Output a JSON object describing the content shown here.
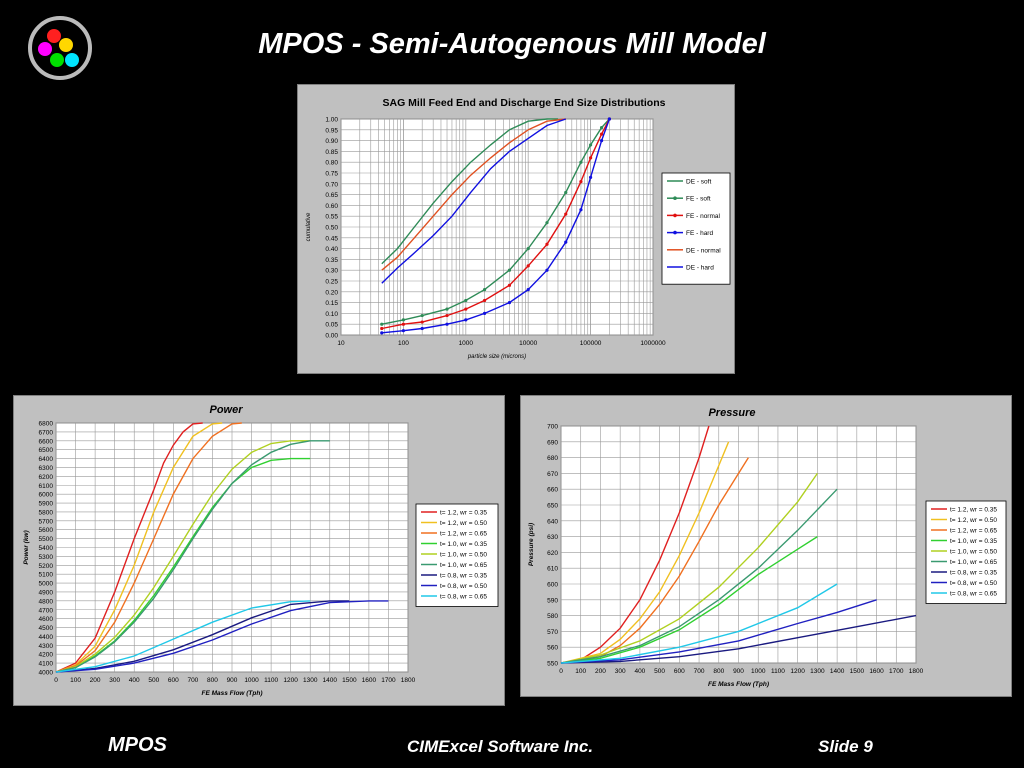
{
  "slide": {
    "title": "MPOS - Semi-Autogenous Mill Model",
    "footer_left": "MPOS",
    "footer_center": "CIMExcel Software Inc.",
    "footer_right": "Slide 9"
  },
  "logo": {
    "icon": "colored-circles-logo-icon",
    "colors": [
      "#ff2020",
      "#ffd700",
      "#ff00ff",
      "#00e000",
      "#00e5ff"
    ]
  },
  "chart_data": [
    {
      "type": "line",
      "title": "SAG Mill Feed End and Discharge End Size Distributions",
      "xlabel": "particle size  (microns)",
      "ylabel": "cumulative",
      "x_scale": "log",
      "xlim": [
        10,
        1000000
      ],
      "ylim": [
        0,
        1
      ],
      "x_ticks": [
        "10",
        "100",
        "1000",
        "10000",
        "100000",
        "1000000"
      ],
      "y_ticks": [
        "0.00",
        "0.05",
        "0.10",
        "0.15",
        "0.20",
        "0.25",
        "0.30",
        "0.35",
        "0.40",
        "0.45",
        "0.50",
        "0.55",
        "0.60",
        "0.65",
        "0.70",
        "0.75",
        "0.80",
        "0.85",
        "0.90",
        "0.95",
        "1.00"
      ],
      "legend_position": "right",
      "grid": true,
      "series": [
        {
          "name": "DE - soft",
          "color": "#2e8b57",
          "marker": false,
          "x": [
            45,
            80,
            150,
            300,
            600,
            1200,
            2500,
            5000,
            10000,
            20000,
            30000
          ],
          "y": [
            0.33,
            0.4,
            0.5,
            0.61,
            0.71,
            0.8,
            0.88,
            0.95,
            0.99,
            1.0,
            1.0
          ]
        },
        {
          "name": "FE - soft",
          "color": "#2e8b57",
          "marker": true,
          "x": [
            45,
            100,
            200,
            500,
            1000,
            2000,
            5000,
            10000,
            20000,
            40000,
            70000,
            100000,
            150000,
            200000
          ],
          "y": [
            0.05,
            0.07,
            0.09,
            0.12,
            0.16,
            0.21,
            0.3,
            0.4,
            0.52,
            0.66,
            0.8,
            0.88,
            0.96,
            1.0
          ]
        },
        {
          "name": "FE - normal",
          "color": "#e01010",
          "marker": true,
          "x": [
            45,
            100,
            200,
            500,
            1000,
            2000,
            5000,
            10000,
            20000,
            40000,
            70000,
            100000,
            150000,
            200000
          ],
          "y": [
            0.03,
            0.05,
            0.06,
            0.09,
            0.12,
            0.16,
            0.23,
            0.32,
            0.42,
            0.56,
            0.71,
            0.82,
            0.93,
            1.0
          ]
        },
        {
          "name": "FE - hard",
          "color": "#1010e0",
          "marker": true,
          "x": [
            45,
            100,
            200,
            500,
            1000,
            2000,
            5000,
            10000,
            20000,
            40000,
            70000,
            100000,
            150000,
            200000
          ],
          "y": [
            0.01,
            0.02,
            0.03,
            0.05,
            0.07,
            0.1,
            0.15,
            0.21,
            0.3,
            0.43,
            0.58,
            0.73,
            0.9,
            1.0
          ]
        },
        {
          "name": "DE - normal",
          "color": "#e05020",
          "marker": false,
          "x": [
            45,
            80,
            150,
            300,
            600,
            1200,
            2500,
            5000,
            10000,
            20000,
            40000
          ],
          "y": [
            0.3,
            0.36,
            0.45,
            0.55,
            0.65,
            0.74,
            0.82,
            0.89,
            0.95,
            0.99,
            1.0
          ]
        },
        {
          "name": "DE - hard",
          "color": "#1010e0",
          "marker": false,
          "x": [
            45,
            80,
            150,
            300,
            600,
            1200,
            2500,
            5000,
            10000,
            20000,
            40000
          ],
          "y": [
            0.24,
            0.31,
            0.38,
            0.46,
            0.55,
            0.66,
            0.77,
            0.85,
            0.91,
            0.97,
            1.0
          ]
        }
      ]
    },
    {
      "type": "line",
      "title": "Power",
      "xlabel": "FE Mass Flow (Tph)",
      "ylabel": "Power (kw)",
      "xlim": [
        0,
        1800
      ],
      "ylim": [
        4000,
        6800
      ],
      "x_ticks": [
        "0",
        "100",
        "200",
        "300",
        "400",
        "500",
        "600",
        "700",
        "800",
        "900",
        "1000",
        "1100",
        "1200",
        "1300",
        "1400",
        "1500",
        "1600",
        "1700",
        "1800"
      ],
      "y_ticks": [
        "4000",
        "4100",
        "4200",
        "4300",
        "4400",
        "4500",
        "4600",
        "4700",
        "4800",
        "4900",
        "5000",
        "5100",
        "5200",
        "5300",
        "5400",
        "5500",
        "5600",
        "5700",
        "5800",
        "5900",
        "6000",
        "6100",
        "6200",
        "6300",
        "6400",
        "6500",
        "6600",
        "6700",
        "6800"
      ],
      "legend_position": "right",
      "grid": true,
      "series": [
        {
          "name": "t= 1.2, wr = 0.35",
          "color": "#e02020",
          "x": [
            0,
            100,
            200,
            300,
            400,
            500,
            550,
            600,
            650,
            700,
            750
          ],
          "y": [
            4000,
            4100,
            4380,
            4900,
            5500,
            6050,
            6350,
            6550,
            6700,
            6790,
            6800
          ]
        },
        {
          "name": "t= 1.2, wr = 0.50",
          "color": "#f0c020",
          "x": [
            0,
            100,
            200,
            300,
            400,
            500,
            600,
            700,
            800,
            850
          ],
          "y": [
            4000,
            4080,
            4290,
            4700,
            5200,
            5800,
            6300,
            6650,
            6790,
            6800
          ]
        },
        {
          "name": "t= 1.2, wr = 0.65",
          "color": "#f07020",
          "x": [
            0,
            100,
            200,
            300,
            400,
            500,
            600,
            700,
            800,
            900,
            950
          ],
          "y": [
            4000,
            4070,
            4240,
            4560,
            5000,
            5500,
            6000,
            6400,
            6650,
            6790,
            6800
          ]
        },
        {
          "name": "t= 1.0, wr = 0.35",
          "color": "#30d030",
          "x": [
            0,
            100,
            200,
            300,
            400,
            500,
            600,
            700,
            800,
            900,
            1000,
            1100,
            1200,
            1300
          ],
          "y": [
            4000,
            4050,
            4180,
            4350,
            4580,
            4860,
            5180,
            5520,
            5850,
            6120,
            6300,
            6380,
            6400,
            6400
          ]
        },
        {
          "name": "t= 1.0, wr = 0.50",
          "color": "#b0d020",
          "x": [
            0,
            100,
            200,
            300,
            400,
            500,
            600,
            700,
            800,
            900,
            1000,
            1100,
            1200,
            1300
          ],
          "y": [
            4000,
            4060,
            4200,
            4390,
            4640,
            4950,
            5300,
            5660,
            6000,
            6280,
            6470,
            6570,
            6600,
            6600
          ]
        },
        {
          "name": "t= 1.0, wr = 0.65",
          "color": "#3a9a70",
          "x": [
            0,
            100,
            200,
            300,
            400,
            500,
            600,
            700,
            800,
            900,
            1000,
            1100,
            1200,
            1300,
            1400
          ],
          "y": [
            4000,
            4050,
            4170,
            4340,
            4560,
            4830,
            5150,
            5500,
            5830,
            6120,
            6330,
            6470,
            6560,
            6600,
            6600
          ]
        },
        {
          "name": "t= 0.8, wr = 0.35",
          "color": "#1a1a80",
          "x": [
            0,
            200,
            400,
            600,
            800,
            1000,
            1200,
            1400,
            1500
          ],
          "y": [
            4000,
            4040,
            4120,
            4250,
            4420,
            4610,
            4760,
            4800,
            4800
          ]
        },
        {
          "name": "t= 0.8, wr = 0.50",
          "color": "#2020c0",
          "x": [
            0,
            200,
            400,
            600,
            800,
            1000,
            1200,
            1400,
            1600,
            1700
          ],
          "y": [
            4000,
            4030,
            4100,
            4210,
            4360,
            4540,
            4690,
            4780,
            4800,
            4800
          ]
        },
        {
          "name": "t= 0.8, wr = 0.65",
          "color": "#20c8e8",
          "x": [
            0,
            200,
            400,
            600,
            800,
            1000,
            1200,
            1300
          ],
          "y": [
            4000,
            4060,
            4180,
            4370,
            4560,
            4720,
            4790,
            4800
          ]
        }
      ]
    },
    {
      "type": "line",
      "title": "Pressure",
      "xlabel": "FE Mass Flow (Tph)",
      "ylabel": "Pressure (psi)",
      "xlim": [
        0,
        1800
      ],
      "ylim": [
        550,
        700
      ],
      "x_ticks": [
        "0",
        "100",
        "200",
        "300",
        "400",
        "500",
        "600",
        "700",
        "800",
        "900",
        "1000",
        "1100",
        "1200",
        "1300",
        "1400",
        "1500",
        "1600",
        "1700",
        "1800"
      ],
      "y_ticks": [
        "550",
        "560",
        "570",
        "580",
        "590",
        "600",
        "610",
        "620",
        "630",
        "640",
        "650",
        "660",
        "670",
        "680",
        "690",
        "700"
      ],
      "legend_position": "right",
      "grid": true,
      "series": [
        {
          "name": "t= 1.2, wr = 0.35",
          "color": "#e02020",
          "x": [
            0,
            100,
            200,
            300,
            400,
            500,
            600,
            700,
            750
          ],
          "y": [
            550,
            552,
            560,
            572,
            590,
            615,
            645,
            680,
            700
          ]
        },
        {
          "name": "t= 1.2, wr = 0.50",
          "color": "#f0c020",
          "x": [
            0,
            200,
            300,
            400,
            500,
            600,
            700,
            800,
            850
          ],
          "y": [
            550,
            556,
            565,
            578,
            595,
            618,
            645,
            675,
            690
          ]
        },
        {
          "name": "t= 1.2, wr = 0.65",
          "color": "#f07020",
          "x": [
            0,
            200,
            300,
            400,
            500,
            600,
            700,
            800,
            950
          ],
          "y": [
            550,
            554,
            561,
            572,
            587,
            605,
            627,
            650,
            680
          ]
        },
        {
          "name": "t= 1.0, wr = 0.35",
          "color": "#30d030",
          "x": [
            0,
            200,
            400,
            600,
            800,
            1000,
            1200,
            1300
          ],
          "y": [
            550,
            553,
            560,
            571,
            587,
            606,
            622,
            630
          ]
        },
        {
          "name": "t= 1.0, wr = 0.50",
          "color": "#b0d020",
          "x": [
            0,
            200,
            400,
            600,
            800,
            1000,
            1200,
            1300
          ],
          "y": [
            550,
            555,
            564,
            578,
            598,
            623,
            652,
            670
          ]
        },
        {
          "name": "t= 1.0, wr = 0.65",
          "color": "#3a9a70",
          "x": [
            0,
            200,
            400,
            600,
            800,
            1000,
            1200,
            1400
          ],
          "y": [
            550,
            554,
            561,
            573,
            590,
            610,
            634,
            660
          ]
        },
        {
          "name": "t= 0.8, wr = 0.35",
          "color": "#1a1a80",
          "x": [
            0,
            300,
            600,
            900,
            1200,
            1500,
            1800
          ],
          "y": [
            550,
            551,
            554,
            559,
            566,
            573,
            580
          ]
        },
        {
          "name": "t= 0.8, wr = 0.50",
          "color": "#2020c0",
          "x": [
            0,
            300,
            600,
            900,
            1200,
            1400,
            1600
          ],
          "y": [
            550,
            552,
            557,
            564,
            575,
            582,
            590
          ]
        },
        {
          "name": "t= 0.8, wr = 0.65",
          "color": "#20c8e8",
          "x": [
            0,
            300,
            600,
            900,
            1200,
            1400
          ],
          "y": [
            550,
            553,
            560,
            570,
            585,
            600
          ]
        }
      ]
    }
  ]
}
